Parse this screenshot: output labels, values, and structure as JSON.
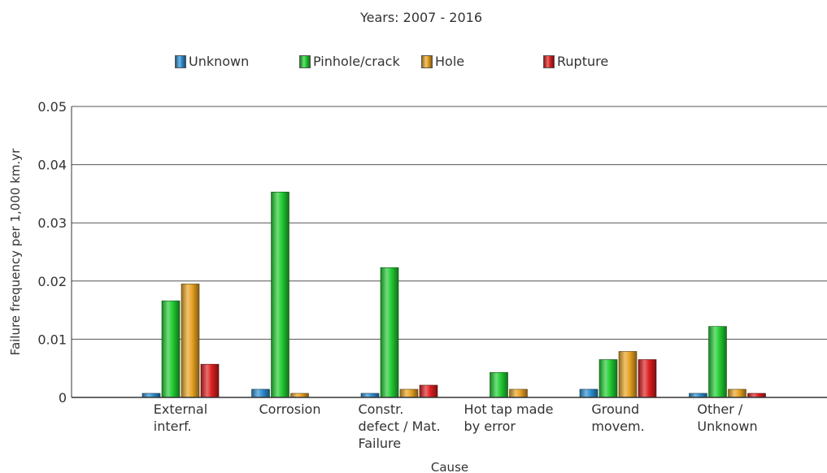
{
  "chart_data": {
    "type": "bar",
    "title": "Years: 2007 - 2016",
    "xlabel": "Cause",
    "ylabel": "Failure frequency per 1,000 km.yr",
    "ylim": [
      0,
      0.05
    ],
    "yticks": [
      "0",
      "0.01",
      "0.02",
      "0.03",
      "0.04",
      "0.05"
    ],
    "grid": true,
    "legend_position": "top",
    "categories": [
      [
        "External",
        "interf."
      ],
      [
        "Corrosion"
      ],
      [
        "Constr.",
        "defect / Mat.",
        "Failure"
      ],
      [
        "Hot tap made",
        "by error"
      ],
      [
        "Ground",
        "movem."
      ],
      [
        "Other /",
        "Unknown"
      ]
    ],
    "series": [
      {
        "name": "Unknown",
        "color": "#2e8fd0",
        "values": [
          0.0007,
          0.0014,
          0.0007,
          0.0,
          0.0014,
          0.0007
        ]
      },
      {
        "name": "Pinhole/crack",
        "color": "#22cc33",
        "values": [
          0.0166,
          0.0353,
          0.0223,
          0.0043,
          0.0065,
          0.0122
        ]
      },
      {
        "name": "Hole",
        "color": "#e8a323",
        "values": [
          0.0195,
          0.0007,
          0.0014,
          0.0014,
          0.0079,
          0.0014
        ]
      },
      {
        "name": "Rupture",
        "color": "#dd1f1f",
        "values": [
          0.0057,
          0.0,
          0.0021,
          0.0,
          0.0065,
          0.0007
        ]
      }
    ]
  }
}
